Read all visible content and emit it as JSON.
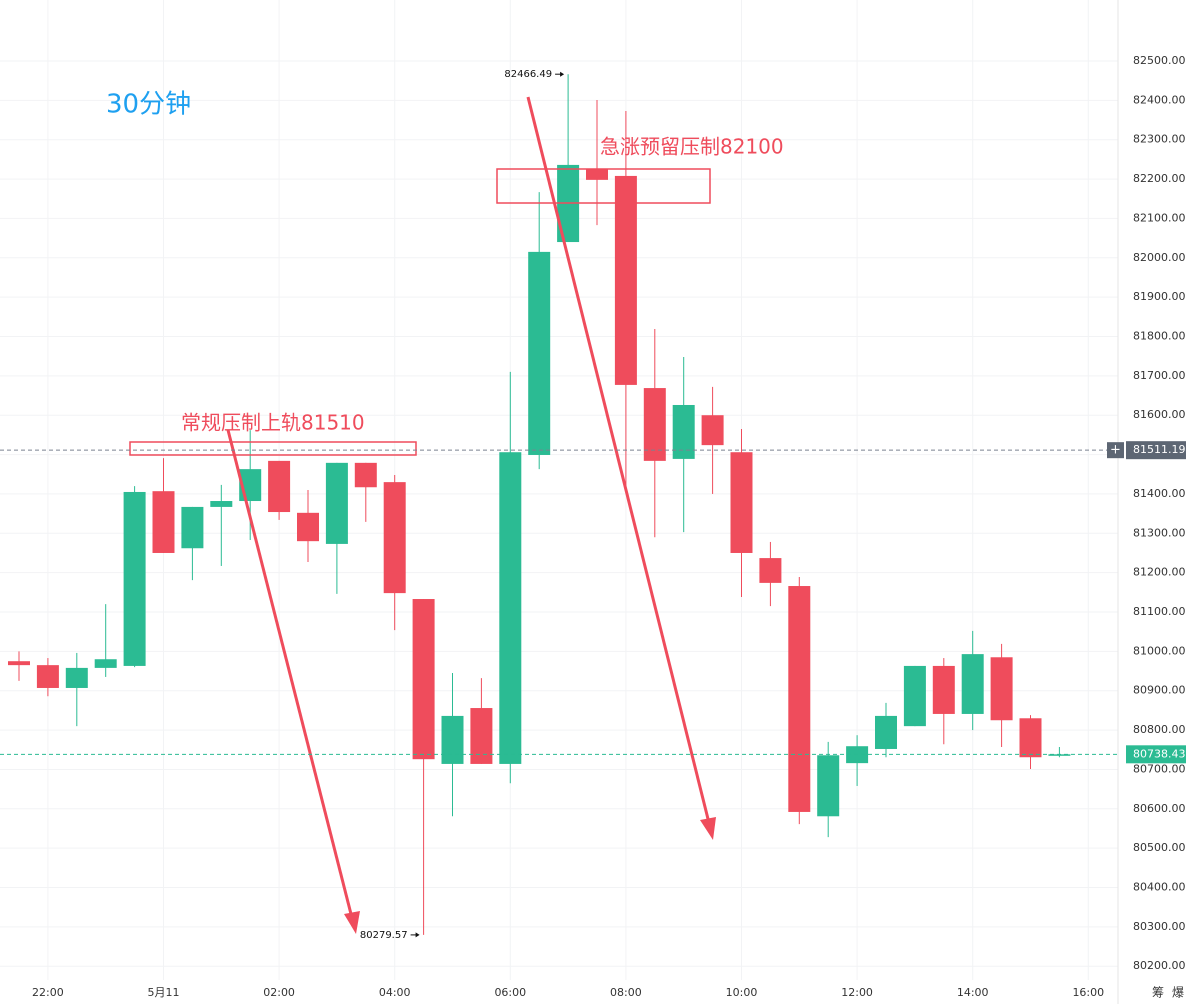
{
  "chart_data": {
    "type": "candlestick",
    "title": "30分钟",
    "annotations": [
      "常规压制上轨81510",
      "急涨预留压制82100"
    ],
    "categories": [
      null,
      "22:00",
      null,
      null,
      null,
      "5月11",
      null,
      null,
      null,
      "02:00",
      null,
      null,
      null,
      "04:00",
      null,
      null,
      null,
      "06:00",
      null,
      null,
      null,
      "08:00",
      null,
      null,
      null,
      "10:00",
      null,
      null,
      null,
      "12:00",
      null,
      null,
      null,
      "14:00",
      null,
      null,
      null,
      "16:00"
    ],
    "open": [
      80975,
      80965,
      80907,
      80958,
      80963,
      81407,
      81262,
      81367,
      81382,
      81484,
      81352,
      81273,
      81479,
      81430,
      81133,
      80714,
      80856,
      80714,
      81499,
      82040,
      82226,
      82208,
      81669,
      81489,
      81600,
      81506,
      81237,
      81166,
      80581,
      80716,
      80752,
      80810,
      80963,
      80841,
      80985,
      80830,
      80736,
      null
    ],
    "high": [
      81000,
      80983,
      80996,
      81120,
      81420,
      81491,
      81367,
      81423,
      81562,
      81484,
      81410,
      81479,
      81479,
      81448,
      81133,
      80945,
      80932,
      81710,
      82167,
      82466.49,
      82401,
      82373,
      81819,
      81748,
      81672,
      81565,
      81278,
      81189,
      80770,
      80787,
      80869,
      80963,
      80983,
      81052,
      81019,
      80838,
      80757,
      null
    ],
    "low": [
      80925,
      80886,
      80810,
      80935,
      80960,
      81250,
      81181,
      81217,
      81283,
      81334,
      81227,
      81146,
      81329,
      81054,
      80279.57,
      80581,
      80714,
      80665,
      81463,
      82040,
      82083,
      81410,
      81290,
      81303,
      81400,
      81138,
      81115,
      80561,
      80528,
      80658,
      80731,
      80810,
      80764,
      80800,
      80757,
      80701,
      80731,
      null
    ],
    "close": [
      80965,
      80907,
      80958,
      80980,
      81405,
      81250,
      81367,
      81382,
      81463,
      81354,
      81280,
      81479,
      81417,
      81148,
      80726,
      80836,
      80714,
      81506,
      82015,
      82236,
      82198,
      81677,
      81484,
      81626,
      81524,
      81250,
      81174,
      80592,
      80736,
      80759,
      80836,
      80963,
      80841,
      80993,
      80825,
      80731,
      80738.43,
      null
    ],
    "up_color": "#2bbb93",
    "down_color": "#ef4c5c",
    "crosshair_price": 81511.19,
    "ylim": [
      80165,
      82655
    ],
    "yticks": [
      {
        "value": 80200,
        "label": "80200.00"
      },
      {
        "value": 80300,
        "label": "80300.00"
      },
      {
        "value": 80400,
        "label": "80400.00"
      },
      {
        "value": 80500,
        "label": "80500.00"
      },
      {
        "value": 80600,
        "label": "80600.00"
      },
      {
        "value": 80700,
        "label": "80700.00"
      },
      {
        "value": 80800,
        "label": "80800.00"
      },
      {
        "value": 80900,
        "label": "80900.00"
      },
      {
        "value": 81000,
        "label": "81000.00"
      },
      {
        "value": 81100,
        "label": "81100.00"
      },
      {
        "value": 81200,
        "label": "81200.00"
      },
      {
        "value": 81300,
        "label": "81300.00"
      },
      {
        "value": 81400,
        "label": "81400.00"
      },
      {
        "value": 81500,
        "label": "81500.00"
      },
      {
        "value": 81600,
        "label": "81600.00"
      },
      {
        "value": 81700,
        "label": "81700.00"
      },
      {
        "value": 81800,
        "label": "81800.00"
      },
      {
        "value": 81900,
        "label": "81900.00"
      },
      {
        "value": 82000,
        "label": "82000.00"
      },
      {
        "value": 82100,
        "label": "82100.00"
      },
      {
        "value": 82200,
        "label": "82200.00"
      },
      {
        "value": 82300,
        "label": "82300.00"
      },
      {
        "value": 82400,
        "label": "82400.00"
      },
      {
        "value": 82500,
        "label": "82500.00"
      }
    ],
    "grid": true,
    "toolbar": [
      "筹",
      "爆"
    ]
  }
}
